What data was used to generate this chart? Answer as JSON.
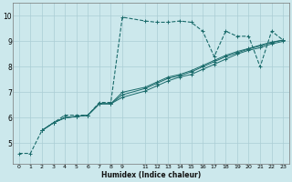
{
  "xlabel": "Humidex (Indice chaleur)",
  "bg_color": "#cce8ec",
  "grid_color": "#aacdd4",
  "line_color": "#1a6b6b",
  "xlim": [
    -0.5,
    23.5
  ],
  "ylim": [
    4.2,
    10.5
  ],
  "yticks": [
    5,
    6,
    7,
    8,
    9,
    10
  ],
  "xtick_positions": [
    0,
    1,
    2,
    3,
    4,
    5,
    6,
    7,
    8,
    9,
    11,
    12,
    13,
    14,
    15,
    16,
    17,
    18,
    19,
    20,
    21,
    22,
    23
  ],
  "xtick_labels": [
    "0",
    "1",
    "2",
    "3",
    "4",
    "5",
    "6",
    "7",
    "8",
    "9",
    "11",
    "12",
    "13",
    "14",
    "15",
    "16",
    "17",
    "18",
    "19",
    "20",
    "21",
    "22",
    "23"
  ],
  "series": [
    {
      "x": [
        0,
        1,
        2,
        3,
        4,
        5,
        6,
        7,
        8,
        9,
        11,
        12,
        13,
        14,
        15,
        16,
        17,
        18,
        19,
        20,
        21,
        22,
        23
      ],
      "y": [
        4.6,
        4.6,
        5.5,
        5.8,
        6.1,
        6.1,
        6.1,
        6.6,
        6.6,
        9.95,
        9.8,
        9.75,
        9.75,
        9.8,
        9.75,
        9.4,
        8.4,
        9.4,
        9.2,
        9.2,
        8.0,
        9.4,
        9.05
      ],
      "linestyle": "--",
      "linewidth": 0.8,
      "marker": "+",
      "markersize": 3.5
    },
    {
      "x": [
        2,
        3,
        4,
        5,
        6,
        7,
        8,
        9,
        11,
        12,
        13,
        14,
        15,
        16,
        17,
        18,
        19,
        20,
        21,
        22,
        23
      ],
      "y": [
        5.5,
        5.8,
        6.0,
        6.05,
        6.1,
        6.55,
        6.55,
        6.8,
        7.05,
        7.25,
        7.45,
        7.6,
        7.7,
        7.9,
        8.1,
        8.3,
        8.5,
        8.65,
        8.75,
        8.9,
        9.0
      ],
      "linestyle": "-",
      "linewidth": 0.7,
      "marker": "+",
      "markersize": 2.5
    },
    {
      "x": [
        2,
        3,
        4,
        5,
        6,
        7,
        8,
        9,
        11,
        12,
        13,
        14,
        15,
        16,
        17,
        18,
        19,
        20,
        21,
        22,
        23
      ],
      "y": [
        5.5,
        5.8,
        6.0,
        6.05,
        6.1,
        6.55,
        6.55,
        6.9,
        7.15,
        7.35,
        7.55,
        7.65,
        7.8,
        8.0,
        8.2,
        8.4,
        8.55,
        8.7,
        8.82,
        8.95,
        9.05
      ],
      "linestyle": "-",
      "linewidth": 0.7,
      "marker": "+",
      "markersize": 2.5
    },
    {
      "x": [
        2,
        3,
        4,
        5,
        6,
        7,
        8,
        9,
        11,
        12,
        13,
        14,
        15,
        16,
        17,
        18,
        19,
        20,
        21,
        22,
        23
      ],
      "y": [
        5.5,
        5.8,
        6.0,
        6.05,
        6.1,
        6.55,
        6.55,
        7.0,
        7.2,
        7.4,
        7.6,
        7.7,
        7.85,
        8.05,
        8.25,
        8.45,
        8.6,
        8.72,
        8.85,
        8.97,
        9.05
      ],
      "linestyle": "-",
      "linewidth": 0.7,
      "marker": "+",
      "markersize": 2.5
    }
  ]
}
